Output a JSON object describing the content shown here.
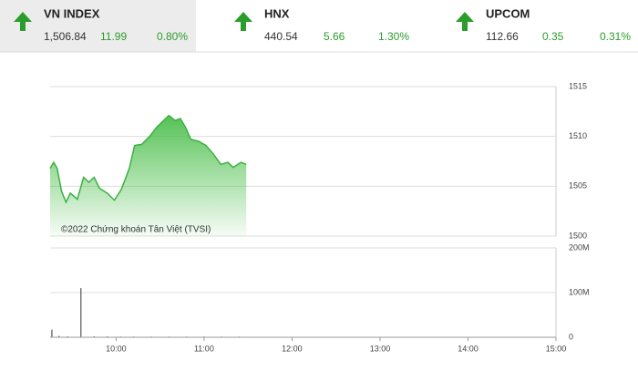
{
  "indices": [
    {
      "name": "VN INDEX",
      "value": "1,506.84",
      "change": "11.99",
      "percent": "0.80%"
    },
    {
      "name": "HNX",
      "value": "440.54",
      "change": "5.66",
      "percent": "1.30%"
    },
    {
      "name": "UPCOM",
      "value": "112.66",
      "change": "0.35",
      "percent": "0.31%"
    }
  ],
  "chart_data": [
    {
      "type": "area",
      "color": "#3cb043",
      "annotation": "©2022 Chứng khoán Tân Việt (TVSI)",
      "x": [
        9.25,
        9.29,
        9.33,
        9.38,
        9.43,
        9.48,
        9.56,
        9.63,
        9.69,
        9.75,
        9.81,
        9.9,
        9.98,
        10.06,
        10.15,
        10.21,
        10.29,
        10.38,
        10.46,
        10.54,
        10.6,
        10.67,
        10.73,
        10.79,
        10.85,
        10.94,
        11.02,
        11.1,
        11.19,
        11.27,
        11.33,
        11.42,
        11.48
      ],
      "values": [
        1506.8,
        1507.4,
        1506.8,
        1504.5,
        1503.4,
        1504.3,
        1503.7,
        1505.9,
        1505.4,
        1505.9,
        1504.8,
        1504.3,
        1503.6,
        1504.7,
        1506.8,
        1509.1,
        1509.2,
        1510.0,
        1510.9,
        1511.6,
        1512.1,
        1511.6,
        1511.8,
        1510.9,
        1509.7,
        1509.5,
        1509.1,
        1508.3,
        1507.2,
        1507.4,
        1506.9,
        1507.4,
        1507.2
      ],
      "xlim": [
        9.25,
        15
      ],
      "ylim": [
        1500,
        1515
      ],
      "yticks": [
        1500,
        1505,
        1510,
        1515
      ],
      "grid": true
    },
    {
      "type": "bar",
      "color": "#555555",
      "x": [
        9.27,
        9.35,
        9.45,
        9.6,
        9.75,
        9.9,
        10.05,
        10.2,
        10.4,
        10.6,
        10.8,
        11.0,
        11.2,
        11.4
      ],
      "values": [
        17000000,
        3000000,
        2000000,
        110000000,
        2000000,
        2000000,
        1500000,
        1500000,
        1500000,
        1500000,
        1500000,
        1500000,
        1500000,
        1500000
      ],
      "xlim": [
        9.25,
        15
      ],
      "ylim": [
        0,
        200000000
      ],
      "yticks": [
        0,
        {
          "value": 100000000,
          "label": "100M"
        },
        {
          "value": 200000000,
          "label": "200M"
        }
      ],
      "xticks": [
        {
          "value": 10,
          "label": "10:00"
        },
        {
          "value": 11,
          "label": "11:00"
        },
        {
          "value": 12,
          "label": "12:00"
        },
        {
          "value": 13,
          "label": "13:00"
        },
        {
          "value": 14,
          "label": "14:00"
        },
        {
          "value": 15,
          "label": "15:00"
        }
      ],
      "grid": true
    }
  ]
}
